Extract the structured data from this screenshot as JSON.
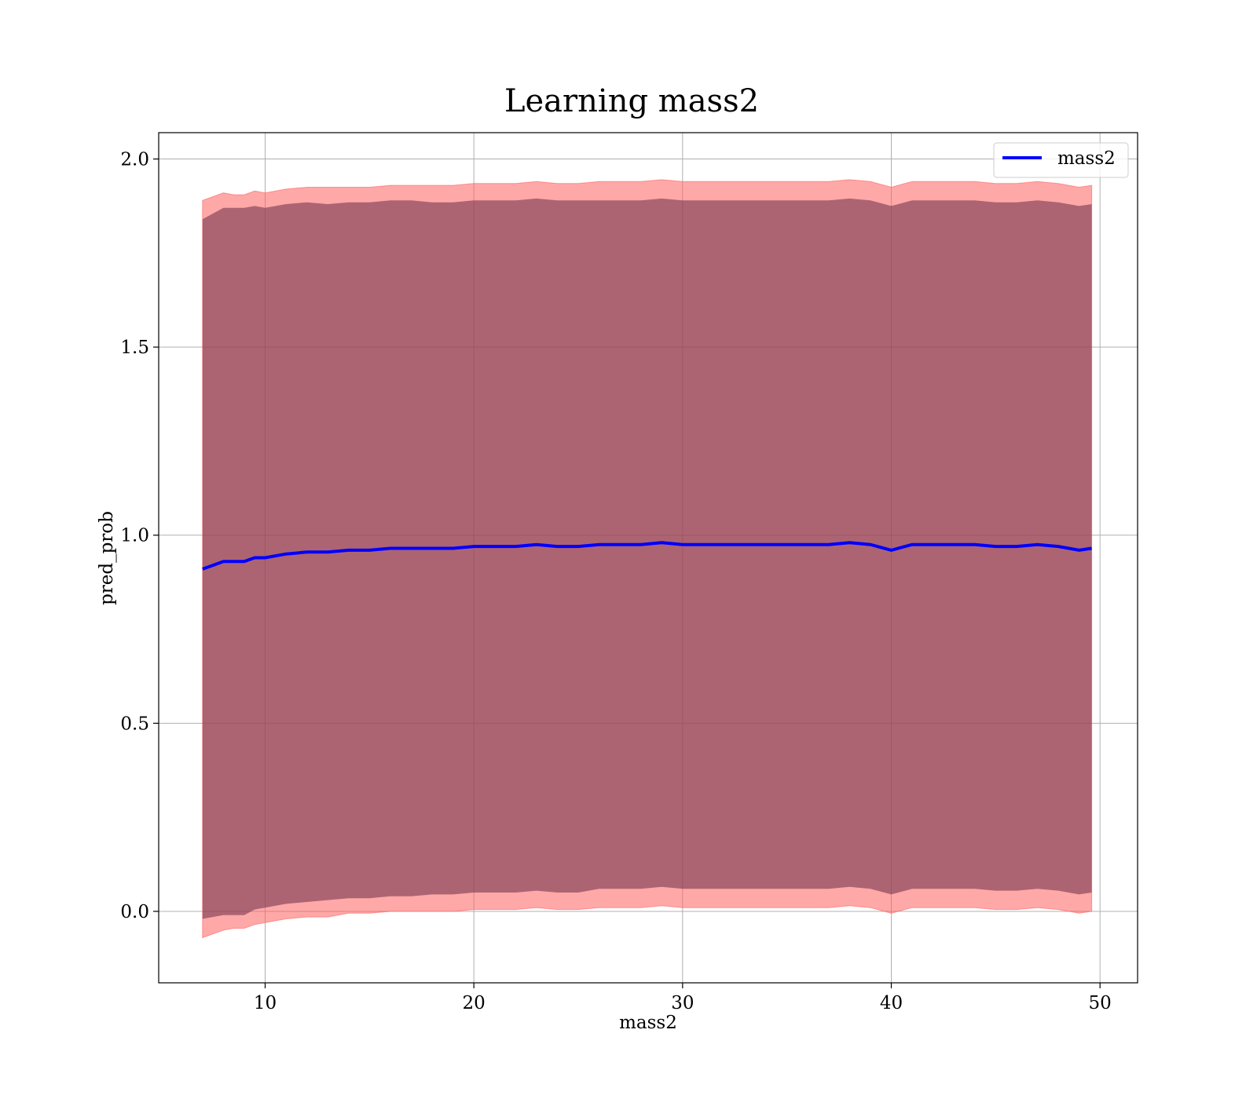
{
  "chart_data": {
    "type": "line",
    "title": "Learning mass2",
    "xlabel": "mass2",
    "ylabel": "pred_prob",
    "xlim": [
      4.9,
      51.8
    ],
    "ylim": [
      -0.19,
      2.07
    ],
    "xticks": [
      10,
      20,
      30,
      40,
      50
    ],
    "yticks": [
      0.0,
      0.5,
      1.0,
      1.5,
      2.0
    ],
    "xtick_labels": [
      "10",
      "20",
      "30",
      "40",
      "50"
    ],
    "ytick_labels": [
      "0.0",
      "0.5",
      "1.0",
      "1.5",
      "2.0"
    ],
    "grid": true,
    "legend": {
      "placement": "top-right",
      "entries": [
        "mass2"
      ]
    },
    "series": [
      {
        "name": "mass2",
        "color": "#0000ff",
        "x": [
          7.0,
          7.5,
          8.0,
          8.5,
          9.0,
          9.5,
          10.0,
          11.0,
          12.0,
          13.0,
          14.0,
          15.0,
          16.0,
          17.0,
          18.0,
          19.0,
          20.0,
          21.0,
          22.0,
          23.0,
          24.0,
          25.0,
          26.0,
          27.0,
          28.0,
          29.0,
          30.0,
          31.0,
          32.0,
          33.0,
          34.0,
          35.0,
          36.0,
          37.0,
          38.0,
          39.0,
          40.0,
          41.0,
          42.0,
          43.0,
          44.0,
          45.0,
          46.0,
          47.0,
          48.0,
          49.0,
          49.6
        ],
        "y": [
          0.91,
          0.92,
          0.93,
          0.93,
          0.93,
          0.94,
          0.94,
          0.95,
          0.955,
          0.955,
          0.96,
          0.96,
          0.965,
          0.965,
          0.965,
          0.965,
          0.97,
          0.97,
          0.97,
          0.975,
          0.97,
          0.97,
          0.975,
          0.975,
          0.975,
          0.98,
          0.975,
          0.975,
          0.975,
          0.975,
          0.975,
          0.975,
          0.975,
          0.975,
          0.98,
          0.975,
          0.96,
          0.975,
          0.975,
          0.975,
          0.975,
          0.97,
          0.97,
          0.975,
          0.97,
          0.96,
          0.965
        ],
        "inner_band_halfwidth": [
          0.93,
          0.935,
          0.94,
          0.94,
          0.94,
          0.935,
          0.93,
          0.93,
          0.93,
          0.925,
          0.925,
          0.925,
          0.925,
          0.925,
          0.92,
          0.92,
          0.92,
          0.92,
          0.92,
          0.92,
          0.92,
          0.92,
          0.915,
          0.915,
          0.915,
          0.915,
          0.915,
          0.915,
          0.915,
          0.915,
          0.915,
          0.915,
          0.915,
          0.915,
          0.915,
          0.915,
          0.915,
          0.915,
          0.915,
          0.915,
          0.915,
          0.915,
          0.915,
          0.915,
          0.915,
          0.915,
          0.915
        ],
        "outer_band_halfwidth": [
          0.98,
          0.98,
          0.98,
          0.975,
          0.975,
          0.975,
          0.97,
          0.97,
          0.97,
          0.97,
          0.965,
          0.965,
          0.965,
          0.965,
          0.965,
          0.965,
          0.965,
          0.965,
          0.965,
          0.965,
          0.965,
          0.965,
          0.965,
          0.965,
          0.965,
          0.965,
          0.965,
          0.965,
          0.965,
          0.965,
          0.965,
          0.965,
          0.965,
          0.965,
          0.965,
          0.965,
          0.965,
          0.965,
          0.965,
          0.965,
          0.965,
          0.965,
          0.965,
          0.965,
          0.965,
          0.965,
          0.965
        ],
        "band_colors": {
          "outer": "#ff6060",
          "inner": "#7a3a50"
        }
      }
    ]
  }
}
